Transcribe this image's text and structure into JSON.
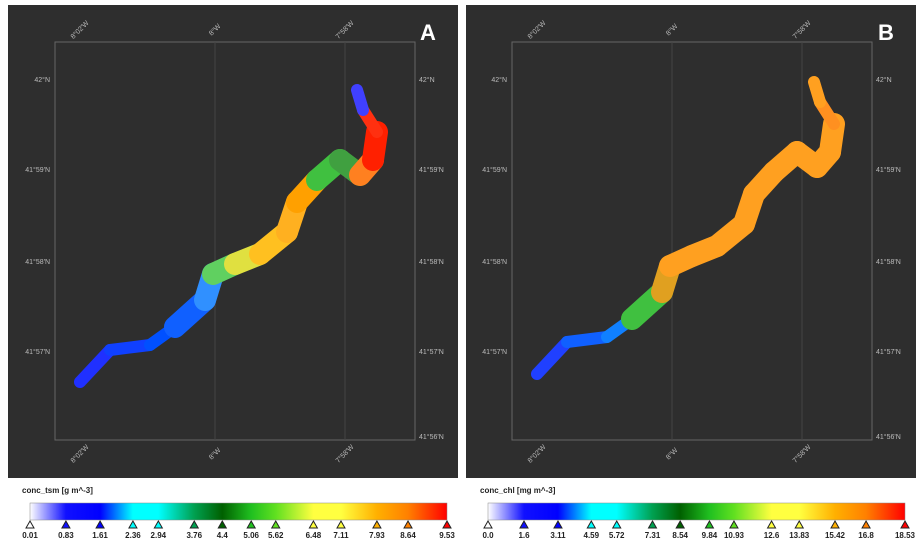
{
  "panels": [
    {
      "label": "A",
      "lat_labels": [
        "42°N",
        "41°59'N",
        "41°58'N",
        "41°57'N",
        "41°56'N"
      ],
      "lon_labels": [
        "8°02'W",
        "8°W",
        "7°58'W"
      ],
      "colorbar": {
        "title": "conc_tsm [g m^-3]",
        "ticks": [
          0.01,
          0.83,
          1.61,
          2.36,
          2.94,
          3.76,
          4.4,
          5.06,
          5.62,
          6.48,
          7.11,
          7.93,
          8.64,
          9.53
        ],
        "colors": [
          "#ffffff",
          "#1010ff",
          "#0000ff",
          "#00ffff",
          "#00ffff",
          "#00a050",
          "#006000",
          "#20c020",
          "#60e020",
          "#ffff40",
          "#ffff40",
          "#ffb000",
          "#ff8000",
          "#ff0000"
        ]
      }
    },
    {
      "label": "B",
      "lat_labels": [
        "42°N",
        "41°59'N",
        "41°58'N",
        "41°57'N",
        "41°56'N"
      ],
      "lon_labels": [
        "8°02'W",
        "8°W",
        "7°58'W"
      ],
      "colorbar": {
        "title": "conc_chl [mg m^-3]",
        "ticks": [
          {
            "value": 0,
            "label": "0.0"
          },
          1.6,
          3.11,
          4.59,
          5.72,
          7.31,
          8.54,
          9.84,
          10.93,
          12.6,
          13.83,
          15.42,
          16.8,
          18.53
        ],
        "colors": [
          "#ffffff",
          "#1010ff",
          "#0000ff",
          "#00ffff",
          "#00ffff",
          "#00a050",
          "#006000",
          "#20c020",
          "#60e020",
          "#ffff40",
          "#ffff40",
          "#ffb000",
          "#ff8000",
          "#ff0000"
        ]
      }
    }
  ]
}
